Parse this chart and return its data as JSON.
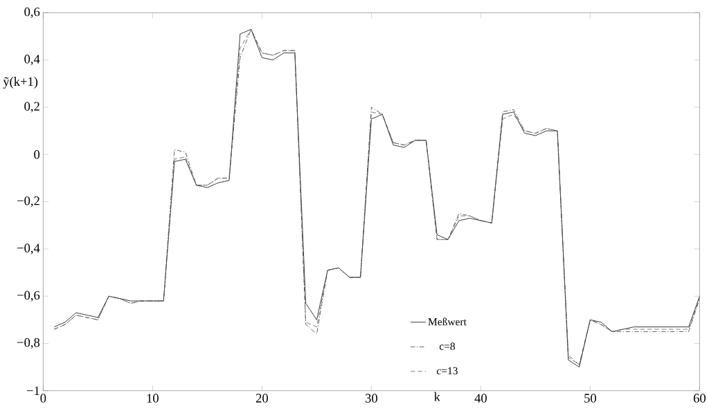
{
  "chart_data": {
    "type": "line",
    "xlabel": "k",
    "ylabel": "ỹ(k+1)",
    "x": [
      1,
      2,
      3,
      4,
      5,
      6,
      7,
      8,
      9,
      10,
      11,
      12,
      13,
      14,
      15,
      16,
      17,
      18,
      19,
      20,
      21,
      22,
      23,
      24,
      25,
      26,
      27,
      28,
      29,
      30,
      31,
      32,
      33,
      34,
      35,
      36,
      37,
      38,
      39,
      40,
      41,
      42,
      43,
      44,
      45,
      46,
      47,
      48,
      49,
      50,
      51,
      52,
      53,
      54,
      55,
      56,
      57,
      58,
      59,
      60
    ],
    "series": [
      {
        "name": "Meßwert",
        "color": "#000000",
        "line_style": "solid",
        "values": [
          -0.73,
          -0.71,
          -0.67,
          -0.68,
          -0.69,
          -0.6,
          -0.61,
          -0.62,
          -0.62,
          -0.62,
          -0.62,
          -0.03,
          -0.02,
          -0.13,
          -0.14,
          -0.12,
          -0.11,
          0.51,
          0.53,
          0.41,
          0.4,
          0.43,
          0.43,
          -0.63,
          -0.7,
          -0.49,
          -0.48,
          -0.52,
          -0.52,
          0.15,
          0.17,
          0.04,
          0.03,
          0.06,
          0.06,
          -0.34,
          -0.36,
          -0.28,
          -0.27,
          -0.28,
          -0.29,
          0.17,
          0.18,
          0.09,
          0.08,
          0.1,
          0.1,
          -0.87,
          -0.9,
          -0.7,
          -0.71,
          -0.75,
          -0.74,
          -0.73,
          -0.73,
          -0.73,
          -0.73,
          -0.73,
          -0.73,
          -0.6
        ]
      },
      {
        "name": "c=8",
        "color": "#333333",
        "line_style": "dashdot",
        "values": [
          -0.74,
          -0.72,
          -0.68,
          -0.69,
          -0.7,
          -0.6,
          -0.61,
          -0.63,
          -0.62,
          -0.62,
          -0.62,
          0.02,
          0.01,
          -0.13,
          -0.13,
          -0.1,
          -0.1,
          0.41,
          0.53,
          0.43,
          0.42,
          0.44,
          0.44,
          -0.72,
          -0.76,
          -0.49,
          -0.48,
          -0.52,
          -0.52,
          0.2,
          0.17,
          0.05,
          0.04,
          0.06,
          0.06,
          -0.36,
          -0.36,
          -0.25,
          -0.26,
          -0.28,
          -0.29,
          0.18,
          0.19,
          0.1,
          0.09,
          0.11,
          0.1,
          -0.85,
          -0.89,
          -0.7,
          -0.72,
          -0.75,
          -0.75,
          -0.75,
          -0.75,
          -0.75,
          -0.75,
          -0.75,
          -0.75,
          -0.61
        ]
      },
      {
        "name": "c=13",
        "color": "#555555",
        "line_style": "dashed",
        "values": [
          -0.74,
          -0.72,
          -0.68,
          -0.69,
          -0.7,
          -0.6,
          -0.61,
          -0.63,
          -0.62,
          -0.62,
          -0.62,
          -0.02,
          -0.01,
          -0.13,
          -0.13,
          -0.1,
          -0.1,
          0.45,
          0.53,
          0.43,
          0.42,
          0.44,
          0.44,
          -0.71,
          -0.73,
          -0.49,
          -0.48,
          -0.52,
          -0.52,
          0.18,
          0.17,
          0.05,
          0.04,
          0.06,
          0.06,
          -0.36,
          -0.36,
          -0.26,
          -0.26,
          -0.28,
          -0.29,
          0.15,
          0.17,
          0.1,
          0.09,
          0.11,
          0.1,
          -0.86,
          -0.89,
          -0.7,
          -0.72,
          -0.75,
          -0.74,
          -0.74,
          -0.74,
          -0.74,
          -0.74,
          -0.74,
          -0.74,
          -0.61
        ]
      }
    ],
    "xlim": [
      0,
      60
    ],
    "xticks": [
      0,
      10,
      20,
      30,
      40,
      50,
      60
    ],
    "ylim": [
      -1,
      0.6
    ],
    "yticks": [
      {
        "value": -1,
        "label": "−1"
      },
      {
        "value": -0.8,
        "label": "−0,8"
      },
      {
        "value": -0.6,
        "label": "−0,6"
      },
      {
        "value": -0.4,
        "label": "−0,4"
      },
      {
        "value": -0.2,
        "label": "−0,2"
      },
      {
        "value": 0,
        "label": "0"
      },
      {
        "value": 0.2,
        "label": "0,2"
      },
      {
        "value": 0.4,
        "label": "0,4"
      },
      {
        "value": 0.6,
        "label": "0,6"
      }
    ],
    "legend": "bottom",
    "grid": false,
    "marker": "none"
  }
}
